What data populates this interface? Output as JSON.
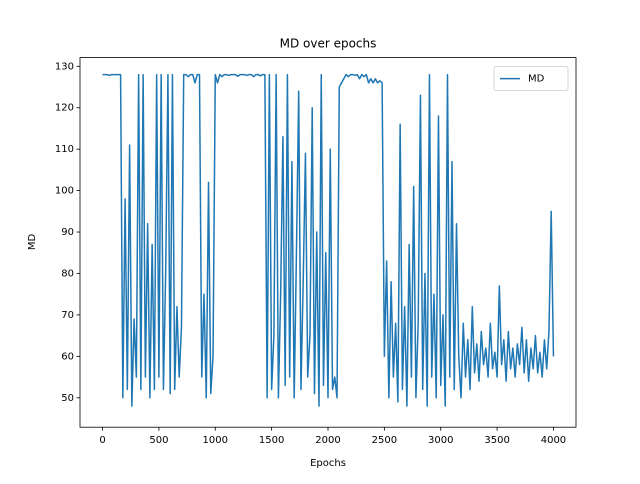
{
  "chart_data": {
    "type": "line",
    "title": "MD over epochs",
    "x_label": "Epochs",
    "y_label": "MD",
    "x": [
      0,
      20,
      40,
      60,
      80,
      100,
      120,
      140,
      160,
      180,
      200,
      220,
      240,
      260,
      280,
      300,
      320,
      340,
      360,
      380,
      400,
      420,
      440,
      460,
      480,
      500,
      520,
      540,
      560,
      580,
      600,
      620,
      640,
      660,
      680,
      700,
      720,
      740,
      760,
      780,
      800,
      820,
      840,
      860,
      880,
      900,
      920,
      940,
      960,
      980,
      1000,
      1020,
      1040,
      1060,
      1080,
      1100,
      1120,
      1140,
      1160,
      1180,
      1200,
      1220,
      1240,
      1260,
      1280,
      1300,
      1320,
      1340,
      1360,
      1380,
      1400,
      1420,
      1440,
      1460,
      1480,
      1500,
      1520,
      1540,
      1560,
      1580,
      1600,
      1620,
      1640,
      1660,
      1680,
      1700,
      1720,
      1740,
      1760,
      1780,
      1800,
      1820,
      1840,
      1860,
      1880,
      1900,
      1920,
      1940,
      1960,
      1980,
      2000,
      2020,
      2040,
      2060,
      2080,
      2100,
      2120,
      2140,
      2160,
      2180,
      2200,
      2220,
      2240,
      2260,
      2280,
      2300,
      2320,
      2340,
      2360,
      2380,
      2400,
      2420,
      2440,
      2460,
      2480,
      2500,
      2520,
      2540,
      2560,
      2580,
      2600,
      2620,
      2640,
      2660,
      2680,
      2700,
      2720,
      2740,
      2760,
      2780,
      2800,
      2820,
      2840,
      2860,
      2880,
      2900,
      2920,
      2940,
      2960,
      2980,
      3000,
      3020,
      3040,
      3060,
      3080,
      3100,
      3120,
      3140,
      3160,
      3180,
      3200,
      3220,
      3240,
      3260,
      3280,
      3300,
      3320,
      3340,
      3360,
      3380,
      3400,
      3420,
      3440,
      3460,
      3480,
      3500,
      3520,
      3540,
      3560,
      3580,
      3600,
      3620,
      3640,
      3660,
      3680,
      3700,
      3720,
      3740,
      3760,
      3780,
      3800,
      3820,
      3840,
      3860,
      3880,
      3900,
      3920,
      3940,
      3960,
      3980,
      4000
    ],
    "series": [
      {
        "name": "MD",
        "color": "#1f77b4",
        "values": [
          128,
          128,
          128,
          127.8,
          128,
          128,
          128,
          128,
          128,
          50,
          98,
          52,
          111,
          48,
          69,
          55,
          128,
          52,
          128,
          55,
          92,
          50,
          87,
          52,
          128,
          55,
          128,
          52,
          80,
          128,
          51,
          128,
          52,
          72,
          55,
          67,
          128,
          128,
          127.5,
          128,
          128,
          126,
          128,
          128,
          55,
          75,
          50,
          102,
          51,
          60,
          128,
          126,
          128,
          127.5,
          128,
          128,
          127.8,
          128,
          128,
          128,
          127.6,
          128,
          128,
          128,
          127.8,
          128,
          128,
          127.5,
          128,
          128,
          127.7,
          128,
          128,
          50,
          128,
          52,
          65,
          128,
          50,
          75,
          113,
          53,
          128,
          55,
          107,
          50,
          85,
          124,
          52,
          78,
          109,
          55,
          65,
          120,
          51,
          90,
          48,
          128,
          53,
          85,
          50,
          110,
          52,
          55,
          50,
          125,
          126,
          127,
          128,
          127.5,
          128,
          128,
          127.8,
          128,
          127,
          128,
          127.5,
          128,
          126,
          127,
          126,
          127,
          126,
          126.5,
          126,
          60,
          83,
          50,
          78,
          55,
          68,
          49,
          116,
          52,
          72,
          48,
          87,
          55,
          101,
          50,
          68,
          123,
          52,
          80,
          48,
          128,
          55,
          75,
          50,
          118,
          53,
          70,
          48,
          128,
          55,
          107,
          52,
          92,
          60,
          50,
          68,
          55,
          64,
          52,
          72,
          56,
          63,
          54,
          66,
          58,
          62,
          55,
          68,
          57,
          61,
          55,
          77,
          58,
          64,
          54,
          66,
          57,
          62,
          55,
          63,
          58,
          67,
          56,
          64,
          54,
          62,
          57,
          65,
          56,
          61,
          55,
          64,
          57,
          66,
          95,
          60
        ]
      }
    ],
    "xlim": [
      -200,
      4200
    ],
    "ylim": [
      42.9,
      132.1
    ],
    "xticks": [
      0,
      500,
      1000,
      1500,
      2000,
      2500,
      3000,
      3500,
      4000
    ],
    "yticks": [
      50,
      60,
      70,
      80,
      90,
      100,
      110,
      120,
      130
    ],
    "legend": "upper right",
    "grid": false
  }
}
